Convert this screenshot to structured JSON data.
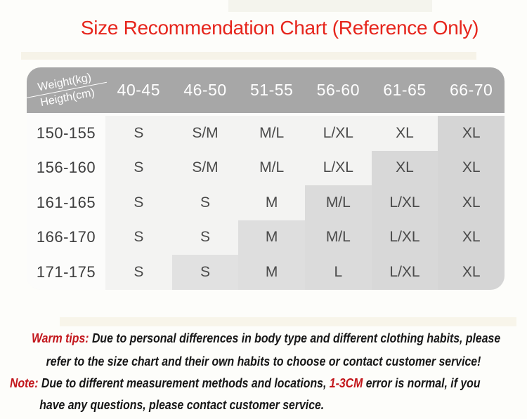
{
  "title": "Size Recommendation Chart (Reference Only)",
  "colors": {
    "title_red": "#e6251c",
    "accent_red": "#c2161b",
    "header_bg": "#a7a7a7",
    "body_bg": "#f3f3f2",
    "label_col_bg": "#fcfcfb",
    "highlight_gray_base": "#dcdcdc",
    "header_text": "#ffffff"
  },
  "chart_data": {
    "type": "table",
    "title": "Size Recommendation Chart (Reference Only)",
    "corner_top_label": "Weight(kg)",
    "corner_bottom_label": "Heigth(cm)",
    "columns": [
      "40-45",
      "46-50",
      "51-55",
      "56-60",
      "61-65",
      "66-70"
    ],
    "rows": [
      {
        "height": "150-155",
        "sizes": [
          "S",
          "S/M",
          "M/L",
          "L/XL",
          "XL",
          "XL"
        ],
        "highlight_from": 5
      },
      {
        "height": "156-160",
        "sizes": [
          "S",
          "S/M",
          "M/L",
          "L/XL",
          "XL",
          "XL"
        ],
        "highlight_from": 4
      },
      {
        "height": "161-165",
        "sizes": [
          "S",
          "S",
          "M",
          "M/L",
          "L/XL",
          "XL"
        ],
        "highlight_from": 3
      },
      {
        "height": "166-170",
        "sizes": [
          "S",
          "S",
          "M",
          "M/L",
          "L/XL",
          "XL"
        ],
        "highlight_from": 2
      },
      {
        "height": "171-175",
        "sizes": [
          "S",
          "S",
          "M",
          "L",
          "L/XL",
          "XL"
        ],
        "highlight_from": 1
      }
    ],
    "layout_hint": "staircase highlight: shaded band grows one column leftward per row down"
  },
  "footnotes": {
    "warm_tips": {
      "label": "Warm tips:",
      "line1": " Due to personal differences in body type and different clothing habits, please",
      "line2": "refer to the size chart and their own habits to choose or contact customer service!"
    },
    "note": {
      "label": "Note:",
      "part1": " Due to different measurement methods and locations, ",
      "highlight": "1-3CM",
      "part2": " error is normal, if you",
      "line2": "have any questions, please contact customer service."
    }
  }
}
